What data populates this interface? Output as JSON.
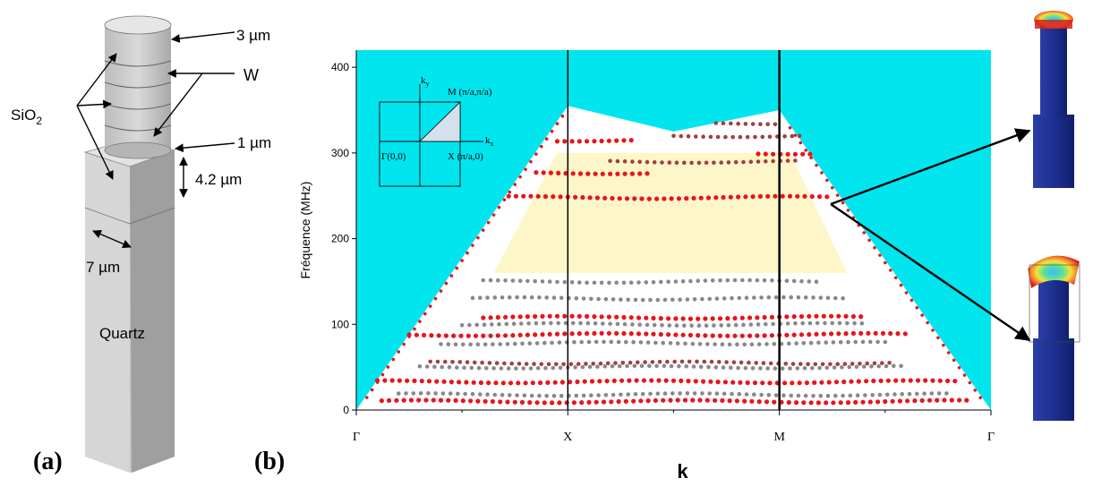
{
  "panel_a": {
    "label": "(a)",
    "labels": {
      "sio2_base": "SiO",
      "sio2_sub": "2",
      "w": "W",
      "dim_3um": "3 µm",
      "dim_1um": "1 µm",
      "dim_42um": "4.2 µm",
      "dim_7um": "7 µm",
      "quartz": "Quartz"
    }
  },
  "panel_b": {
    "label": "(b)",
    "inset": {
      "ky": "k",
      "ky_sub": "y",
      "kx": "k",
      "kx_sub": "x",
      "m": "M (π/a,π/a)",
      "x": "X (π/a,0)",
      "gamma": "Γ(0,0)"
    }
  },
  "chart_data": {
    "type": "scatter",
    "title": "",
    "xlabel": "k",
    "ylabel": "Fréquence (MHz)",
    "ylim": [
      0,
      420
    ],
    "yticks": [
      0,
      100,
      200,
      300,
      400
    ],
    "xticks": [
      "Γ",
      "X",
      "M",
      "Γ"
    ],
    "background_color": "#00e5ee",
    "bandgap_color": "#fdf6c8",
    "grid": false,
    "sound_cone": [
      [
        0,
        0
      ],
      [
        1,
        355
      ],
      [
        1.5,
        325
      ],
      [
        2,
        350
      ],
      [
        3,
        0
      ]
    ],
    "bandgap": {
      "from_x": 1,
      "to_x": 2,
      "range_MHz": [
        160,
        300
      ]
    },
    "series": [
      {
        "color": "#e8141c",
        "bands": [
          {
            "y": 10,
            "x_from": 0.12,
            "x_to": 2.9
          },
          {
            "y": 33,
            "x_from": 0.1,
            "x_to": 2.85
          },
          {
            "y": 88,
            "x_from": 0.25,
            "x_to": 2.6
          },
          {
            "y": 108,
            "x_from": 0.6,
            "x_to": 2.4
          },
          {
            "y": 248,
            "x_from": 0.72,
            "x_to": 2.25
          },
          {
            "y": 277,
            "x_from": 0.85,
            "x_to": 1.4
          },
          {
            "y": 315,
            "x_from": 0.95,
            "x_to": 1.3
          },
          {
            "y": 300,
            "x_from": 1.9,
            "x_to": 2.15
          }
        ]
      },
      {
        "color": "#888888",
        "bands": [
          {
            "y": 18,
            "x_from": 0.2,
            "x_to": 2.8
          },
          {
            "y": 50,
            "x_from": 0.3,
            "x_to": 2.6
          },
          {
            "y": 78,
            "x_from": 0.4,
            "x_to": 2.5
          },
          {
            "y": 100,
            "x_from": 0.5,
            "x_to": 2.4
          },
          {
            "y": 130,
            "x_from": 0.55,
            "x_to": 2.3
          },
          {
            "y": 150,
            "x_from": 0.6,
            "x_to": 2.2
          }
        ]
      },
      {
        "color": "#a04040",
        "bands": [
          {
            "y": 55,
            "x_from": 0.35,
            "x_to": 2.55
          },
          {
            "y": 335,
            "x_from": 1.7,
            "x_to": 2.0
          },
          {
            "y": 320,
            "x_from": 1.5,
            "x_to": 2.1
          },
          {
            "y": 290,
            "x_from": 1.2,
            "x_to": 2.1
          }
        ]
      }
    ]
  }
}
